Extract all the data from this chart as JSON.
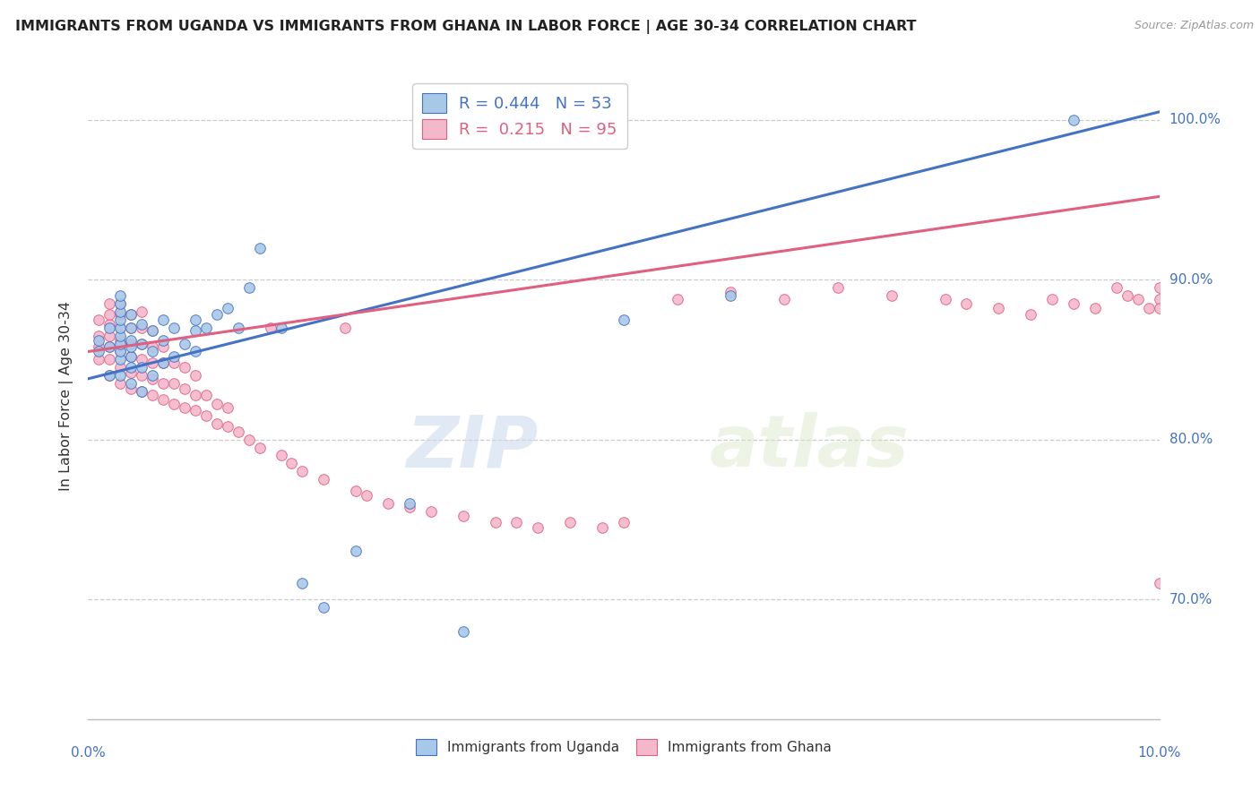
{
  "title": "IMMIGRANTS FROM UGANDA VS IMMIGRANTS FROM GHANA IN LABOR FORCE | AGE 30-34 CORRELATION CHART",
  "source": "Source: ZipAtlas.com",
  "ylabel": "In Labor Force | Age 30-34",
  "ytick_vals": [
    0.7,
    0.8,
    0.9,
    1.0
  ],
  "ytick_labels": [
    "70.0%",
    "80.0%",
    "90.0%",
    "100.0%"
  ],
  "xlim": [
    0.0,
    0.1
  ],
  "ylim": [
    0.625,
    1.03
  ],
  "legend1_label": "R = 0.444   N = 53",
  "legend2_label": "R =  0.215   N = 95",
  "series1_color": "#a8c8e8",
  "series2_color": "#f4b8cc",
  "trendline1_color": "#4472c4",
  "trendline2_color": "#e06080",
  "watermark": "ZIPatlas",
  "legend_labels": [
    "Immigrants from Uganda",
    "Immigrants from Ghana"
  ],
  "uganda_x": [
    0.001,
    0.001,
    0.002,
    0.002,
    0.002,
    0.003,
    0.003,
    0.003,
    0.003,
    0.003,
    0.003,
    0.003,
    0.003,
    0.003,
    0.003,
    0.004,
    0.004,
    0.004,
    0.004,
    0.004,
    0.004,
    0.004,
    0.005,
    0.005,
    0.005,
    0.005,
    0.006,
    0.006,
    0.006,
    0.007,
    0.007,
    0.007,
    0.008,
    0.008,
    0.009,
    0.01,
    0.01,
    0.01,
    0.011,
    0.012,
    0.013,
    0.014,
    0.015,
    0.016,
    0.018,
    0.02,
    0.022,
    0.025,
    0.03,
    0.035,
    0.05,
    0.06,
    0.092
  ],
  "uganda_y": [
    0.855,
    0.862,
    0.84,
    0.858,
    0.87,
    0.84,
    0.85,
    0.855,
    0.86,
    0.865,
    0.87,
    0.875,
    0.88,
    0.885,
    0.89,
    0.835,
    0.845,
    0.852,
    0.858,
    0.862,
    0.87,
    0.878,
    0.83,
    0.845,
    0.86,
    0.872,
    0.84,
    0.855,
    0.868,
    0.848,
    0.862,
    0.875,
    0.852,
    0.87,
    0.86,
    0.855,
    0.868,
    0.875,
    0.87,
    0.878,
    0.882,
    0.87,
    0.895,
    0.92,
    0.87,
    0.71,
    0.695,
    0.73,
    0.76,
    0.68,
    0.875,
    0.89,
    1.0
  ],
  "ghana_x": [
    0.001,
    0.001,
    0.001,
    0.001,
    0.002,
    0.002,
    0.002,
    0.002,
    0.002,
    0.002,
    0.002,
    0.003,
    0.003,
    0.003,
    0.003,
    0.003,
    0.003,
    0.003,
    0.004,
    0.004,
    0.004,
    0.004,
    0.004,
    0.004,
    0.005,
    0.005,
    0.005,
    0.005,
    0.005,
    0.005,
    0.006,
    0.006,
    0.006,
    0.006,
    0.006,
    0.007,
    0.007,
    0.007,
    0.007,
    0.008,
    0.008,
    0.008,
    0.009,
    0.009,
    0.009,
    0.01,
    0.01,
    0.01,
    0.011,
    0.011,
    0.012,
    0.012,
    0.013,
    0.013,
    0.014,
    0.015,
    0.016,
    0.017,
    0.018,
    0.019,
    0.02,
    0.022,
    0.024,
    0.025,
    0.026,
    0.028,
    0.03,
    0.032,
    0.035,
    0.038,
    0.04,
    0.042,
    0.045,
    0.048,
    0.05,
    0.055,
    0.06,
    0.065,
    0.07,
    0.075,
    0.08,
    0.082,
    0.085,
    0.088,
    0.09,
    0.092,
    0.094,
    0.096,
    0.097,
    0.098,
    0.099,
    0.1,
    0.1,
    0.1,
    0.1
  ],
  "ghana_y": [
    0.85,
    0.858,
    0.865,
    0.875,
    0.84,
    0.85,
    0.858,
    0.865,
    0.872,
    0.878,
    0.885,
    0.835,
    0.845,
    0.855,
    0.862,
    0.87,
    0.878,
    0.885,
    0.832,
    0.842,
    0.852,
    0.86,
    0.87,
    0.878,
    0.83,
    0.84,
    0.85,
    0.86,
    0.87,
    0.88,
    0.828,
    0.838,
    0.848,
    0.858,
    0.868,
    0.825,
    0.835,
    0.848,
    0.858,
    0.822,
    0.835,
    0.848,
    0.82,
    0.832,
    0.845,
    0.818,
    0.828,
    0.84,
    0.815,
    0.828,
    0.81,
    0.822,
    0.808,
    0.82,
    0.805,
    0.8,
    0.795,
    0.87,
    0.79,
    0.785,
    0.78,
    0.775,
    0.87,
    0.768,
    0.765,
    0.76,
    0.758,
    0.755,
    0.752,
    0.748,
    0.748,
    0.745,
    0.748,
    0.745,
    0.748,
    0.888,
    0.892,
    0.888,
    0.895,
    0.89,
    0.888,
    0.885,
    0.882,
    0.878,
    0.888,
    0.885,
    0.882,
    0.895,
    0.89,
    0.888,
    0.882,
    0.895,
    0.888,
    0.882,
    0.71
  ]
}
